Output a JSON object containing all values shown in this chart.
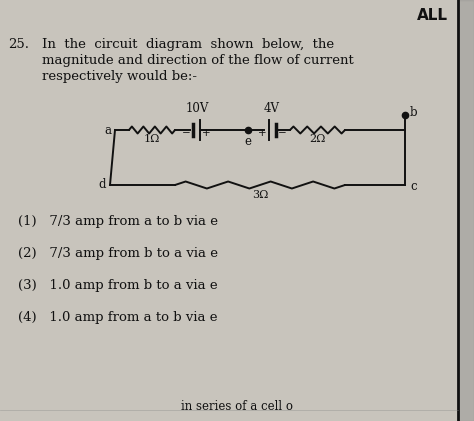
{
  "bg_color": "#c8c4bc",
  "title_text": "ALL",
  "question_number": "25.",
  "question_text_line1": "In  the  circuit  diagram  shown  below,  the",
  "question_text_line2": "magnitude and direction of the flow of current",
  "question_text_line3": "respectively would be:-",
  "label_10V": "10V",
  "label_4V": "4V",
  "label_1ohm": "1Ω",
  "label_2ohm": "2Ω",
  "label_3ohm": "3Ω",
  "node_a": "a",
  "node_b": "b",
  "node_c": "c",
  "node_d": "d",
  "node_e": "e",
  "options": [
    "(1)   7/3 amp from a to b via e",
    "(2)   7/3 amp from b to a via e",
    "(3)   1.0 amp from b to a via e",
    "(4)   1.0 amp from a to b via e"
  ],
  "bottom_text": "in series of a cell o",
  "text_color": "#111111",
  "circuit_color": "#111111",
  "right_border_color": "#111111",
  "right_bar_color": "#555555"
}
